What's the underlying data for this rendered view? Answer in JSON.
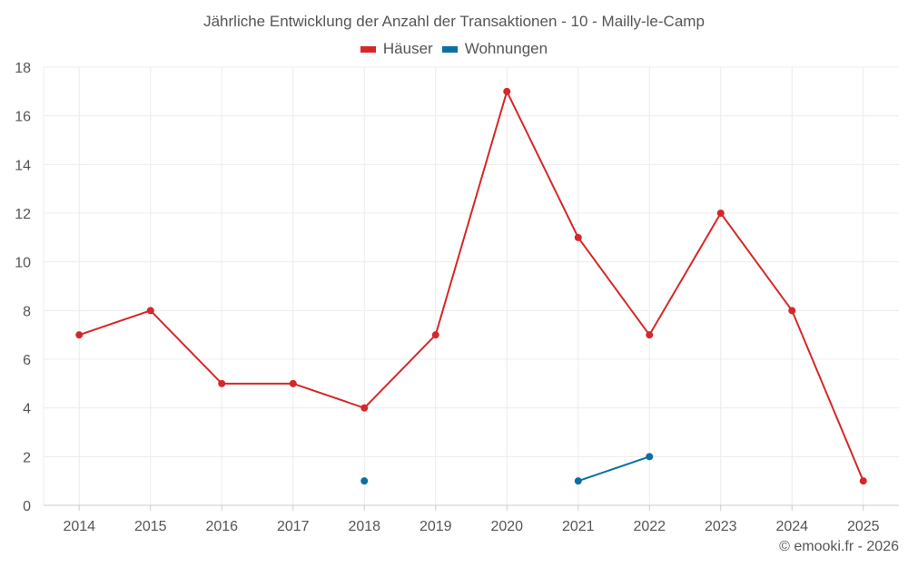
{
  "chart_data": {
    "type": "line",
    "title": "Jährliche Entwicklung der Anzahl der Transaktionen - 10 - Mailly-le-Camp",
    "xlabel": "",
    "ylabel": "",
    "categories": [
      "2014",
      "2015",
      "2016",
      "2017",
      "2018",
      "2019",
      "2020",
      "2021",
      "2022",
      "2023",
      "2024",
      "2025"
    ],
    "ylim": [
      0,
      18
    ],
    "yticks": [
      0,
      2,
      4,
      6,
      8,
      10,
      12,
      14,
      16,
      18
    ],
    "grid": true,
    "legend_position": "top-center",
    "series": [
      {
        "name": "Häuser",
        "color": "#d62728",
        "values": [
          7,
          8,
          5,
          5,
          4,
          7,
          17,
          11,
          7,
          12,
          8,
          1
        ]
      },
      {
        "name": "Wohnungen",
        "color": "#0b6fa4",
        "values": [
          null,
          null,
          null,
          null,
          1,
          null,
          null,
          1,
          2,
          null,
          null,
          null
        ]
      }
    ]
  },
  "credit": "© emooki.fr - 2026"
}
